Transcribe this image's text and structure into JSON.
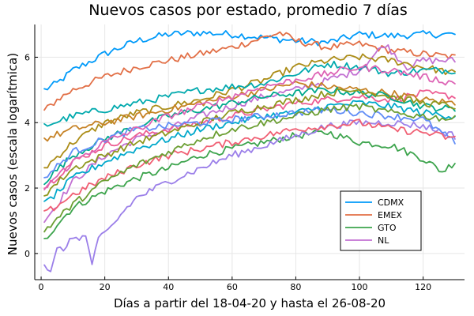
{
  "chart_data": {
    "type": "line",
    "title": "Nuevos casos por estado, promedio 7 días",
    "xlabel": "Días a partir del 18-04-20 y hasta el 26-08-20",
    "ylabel": "Nuevos casos (escala logarítmica)",
    "xlim": [
      -2,
      133
    ],
    "ylim": [
      -0.8,
      7.0
    ],
    "x_ticks": [
      0,
      20,
      40,
      60,
      80,
      100,
      120
    ],
    "y_ticks": [
      0,
      2,
      4,
      6
    ],
    "grid": true,
    "legend_position": "bottom-right",
    "legend": [
      {
        "name": "CDMX",
        "color": "#009af9"
      },
      {
        "name": "EMEX",
        "color": "#e26f46"
      },
      {
        "name": "GTO",
        "color": "#3da44d"
      },
      {
        "name": "NL",
        "color": "#c271d2"
      }
    ],
    "x_start": 1,
    "x_end": 130,
    "series": [
      {
        "name": "CDMX",
        "color": "#009af9",
        "points": [
          [
            1,
            5.0
          ],
          [
            5,
            5.2
          ],
          [
            10,
            5.6
          ],
          [
            20,
            6.1
          ],
          [
            30,
            6.5
          ],
          [
            40,
            6.7
          ],
          [
            50,
            6.75
          ],
          [
            60,
            6.7
          ],
          [
            70,
            6.6
          ],
          [
            80,
            6.5
          ],
          [
            90,
            6.45
          ],
          [
            100,
            6.7
          ],
          [
            110,
            6.65
          ],
          [
            120,
            6.7
          ],
          [
            130,
            6.7
          ]
        ]
      },
      {
        "name": "EMEX",
        "color": "#e26f46",
        "points": [
          [
            1,
            4.35
          ],
          [
            5,
            4.7
          ],
          [
            10,
            5.0
          ],
          [
            20,
            5.4
          ],
          [
            30,
            5.7
          ],
          [
            40,
            5.9
          ],
          [
            50,
            6.1
          ],
          [
            60,
            6.3
          ],
          [
            70,
            6.6
          ],
          [
            75,
            6.75
          ],
          [
            80,
            6.5
          ],
          [
            90,
            6.3
          ],
          [
            100,
            6.4
          ],
          [
            110,
            6.2
          ],
          [
            120,
            6.1
          ],
          [
            130,
            6.0
          ]
        ]
      },
      {
        "name": "GTO",
        "color": "#3da44d",
        "points": [
          [
            1,
            0.4
          ],
          [
            5,
            0.9
          ],
          [
            10,
            1.4
          ],
          [
            20,
            1.9
          ],
          [
            30,
            2.3
          ],
          [
            40,
            2.6
          ],
          [
            50,
            3.0
          ],
          [
            60,
            3.2
          ],
          [
            70,
            3.4
          ],
          [
            80,
            3.6
          ],
          [
            90,
            3.7
          ],
          [
            100,
            3.4
          ],
          [
            110,
            3.3
          ],
          [
            120,
            2.9
          ],
          [
            126,
            2.5
          ],
          [
            130,
            2.8
          ]
        ]
      },
      {
        "name": "NL",
        "color": "#c271d2",
        "points": [
          [
            1,
            1.0
          ],
          [
            5,
            1.5
          ],
          [
            10,
            2.2
          ],
          [
            20,
            3.0
          ],
          [
            30,
            3.5
          ],
          [
            40,
            3.8
          ],
          [
            50,
            4.2
          ],
          [
            60,
            4.5
          ],
          [
            70,
            4.8
          ],
          [
            80,
            5.0
          ],
          [
            90,
            5.3
          ],
          [
            100,
            5.6
          ],
          [
            108,
            6.4
          ],
          [
            115,
            5.7
          ],
          [
            120,
            5.9
          ],
          [
            130,
            5.9
          ]
        ]
      },
      {
        "color": "#ac8d18",
        "points": [
          [
            1,
            2.6
          ],
          [
            10,
            3.4
          ],
          [
            20,
            4.0
          ],
          [
            30,
            4.3
          ],
          [
            40,
            4.5
          ],
          [
            50,
            4.7
          ],
          [
            60,
            5.0
          ],
          [
            70,
            5.3
          ],
          [
            80,
            5.7
          ],
          [
            90,
            5.9
          ],
          [
            100,
            6.0
          ],
          [
            110,
            5.9
          ],
          [
            120,
            5.7
          ],
          [
            130,
            5.5
          ]
        ]
      },
      {
        "color": "#00a9ad",
        "points": [
          [
            1,
            3.9
          ],
          [
            10,
            4.2
          ],
          [
            20,
            4.4
          ],
          [
            30,
            4.6
          ],
          [
            40,
            4.8
          ],
          [
            50,
            5.0
          ],
          [
            60,
            5.1
          ],
          [
            70,
            5.2
          ],
          [
            80,
            5.5
          ],
          [
            90,
            5.8
          ],
          [
            100,
            5.7
          ],
          [
            110,
            5.5
          ],
          [
            120,
            5.6
          ],
          [
            130,
            5.6
          ]
        ]
      },
      {
        "color": "#ed5e93",
        "points": [
          [
            1,
            2.0
          ],
          [
            10,
            2.8
          ],
          [
            20,
            3.3
          ],
          [
            30,
            3.6
          ],
          [
            40,
            3.8
          ],
          [
            50,
            4.0
          ],
          [
            60,
            4.2
          ],
          [
            70,
            4.4
          ],
          [
            80,
            4.6
          ],
          [
            90,
            4.7
          ],
          [
            100,
            4.8
          ],
          [
            110,
            4.7
          ],
          [
            120,
            4.9
          ],
          [
            130,
            4.8
          ]
        ]
      },
      {
        "color": "#c68225",
        "points": [
          [
            1,
            3.5
          ],
          [
            10,
            3.8
          ],
          [
            20,
            4.0
          ],
          [
            30,
            4.2
          ],
          [
            40,
            4.4
          ],
          [
            50,
            4.6
          ],
          [
            60,
            4.8
          ],
          [
            70,
            5.0
          ],
          [
            80,
            5.2
          ],
          [
            90,
            5.1
          ],
          [
            100,
            5.0
          ],
          [
            110,
            4.9
          ],
          [
            120,
            4.7
          ],
          [
            130,
            4.6
          ]
        ]
      },
      {
        "color": "#00a98d",
        "points": [
          [
            1,
            2.2
          ],
          [
            10,
            3.0
          ],
          [
            20,
            3.5
          ],
          [
            30,
            3.9
          ],
          [
            40,
            4.2
          ],
          [
            50,
            4.4
          ],
          [
            60,
            4.6
          ],
          [
            70,
            4.8
          ],
          [
            80,
            4.9
          ],
          [
            90,
            5.0
          ],
          [
            100,
            4.9
          ],
          [
            110,
            4.8
          ],
          [
            120,
            4.5
          ],
          [
            130,
            4.4
          ]
        ]
      },
      {
        "color": "#8e971e",
        "points": [
          [
            1,
            1.8
          ],
          [
            10,
            2.6
          ],
          [
            20,
            3.0
          ],
          [
            30,
            3.4
          ],
          [
            40,
            3.7
          ],
          [
            50,
            4.0
          ],
          [
            60,
            4.3
          ],
          [
            70,
            4.5
          ],
          [
            80,
            4.7
          ],
          [
            90,
            4.9
          ],
          [
            100,
            5.0
          ],
          [
            110,
            4.8
          ],
          [
            120,
            4.6
          ],
          [
            130,
            4.5
          ]
        ]
      },
      {
        "color": "#00a8cb",
        "points": [
          [
            1,
            1.5
          ],
          [
            10,
            2.3
          ],
          [
            20,
            2.8
          ],
          [
            30,
            3.2
          ],
          [
            40,
            3.5
          ],
          [
            50,
            3.8
          ],
          [
            60,
            4.0
          ],
          [
            70,
            4.2
          ],
          [
            80,
            4.3
          ],
          [
            90,
            4.5
          ],
          [
            100,
            4.6
          ],
          [
            110,
            4.5
          ],
          [
            120,
            4.3
          ],
          [
            130,
            4.2
          ]
        ]
      },
      {
        "color": "#9b7fe9",
        "points": [
          [
            1,
            -0.3
          ],
          [
            3,
            -0.6
          ],
          [
            5,
            0.1
          ],
          [
            8,
            0.2
          ],
          [
            10,
            0.5
          ],
          [
            14,
            0.5
          ],
          [
            16,
            -0.3
          ],
          [
            18,
            0.4
          ],
          [
            22,
            0.8
          ],
          [
            26,
            1.3
          ],
          [
            30,
            1.7
          ],
          [
            40,
            2.2
          ],
          [
            50,
            2.6
          ],
          [
            60,
            3.0
          ],
          [
            70,
            3.3
          ],
          [
            80,
            3.6
          ],
          [
            90,
            3.9
          ],
          [
            100,
            4.0
          ],
          [
            110,
            4.0
          ],
          [
            120,
            3.9
          ],
          [
            130,
            3.6
          ]
        ]
      },
      {
        "color": "#618df6",
        "points": [
          [
            1,
            2.3
          ],
          [
            10,
            3.1
          ],
          [
            20,
            3.5
          ],
          [
            30,
            3.8
          ],
          [
            40,
            3.9
          ],
          [
            50,
            4.0
          ],
          [
            60,
            4.1
          ],
          [
            70,
            4.2
          ],
          [
            80,
            4.3
          ],
          [
            90,
            4.4
          ],
          [
            100,
            4.3
          ],
          [
            110,
            4.2
          ],
          [
            120,
            4.1
          ],
          [
            130,
            3.4
          ]
        ]
      },
      {
        "color": "#f05f73",
        "points": [
          [
            1,
            1.2
          ],
          [
            10,
            1.8
          ],
          [
            20,
            2.3
          ],
          [
            30,
            2.7
          ],
          [
            40,
            3.0
          ],
          [
            50,
            3.2
          ],
          [
            60,
            3.4
          ],
          [
            70,
            3.6
          ],
          [
            80,
            3.8
          ],
          [
            90,
            3.9
          ],
          [
            100,
            4.0
          ],
          [
            110,
            3.8
          ],
          [
            120,
            3.7
          ],
          [
            130,
            3.5
          ]
        ]
      },
      {
        "color": "#dd64b5",
        "points": [
          [
            1,
            2.0
          ],
          [
            10,
            2.8
          ],
          [
            20,
            3.4
          ],
          [
            30,
            3.8
          ],
          [
            40,
            4.2
          ],
          [
            50,
            4.5
          ],
          [
            60,
            4.8
          ],
          [
            70,
            5.1
          ],
          [
            80,
            5.3
          ],
          [
            90,
            5.5
          ],
          [
            100,
            5.7
          ],
          [
            110,
            5.6
          ],
          [
            120,
            5.4
          ],
          [
            130,
            5.2
          ]
        ]
      },
      {
        "color": "#6b9e32",
        "points": [
          [
            1,
            0.7
          ],
          [
            10,
            1.5
          ],
          [
            20,
            2.2
          ],
          [
            30,
            2.7
          ],
          [
            40,
            3.1
          ],
          [
            50,
            3.5
          ],
          [
            60,
            3.8
          ],
          [
            70,
            4.0
          ],
          [
            80,
            4.2
          ],
          [
            90,
            4.4
          ],
          [
            100,
            4.5
          ],
          [
            110,
            4.3
          ],
          [
            120,
            4.2
          ],
          [
            130,
            4.1
          ]
        ]
      }
    ]
  }
}
